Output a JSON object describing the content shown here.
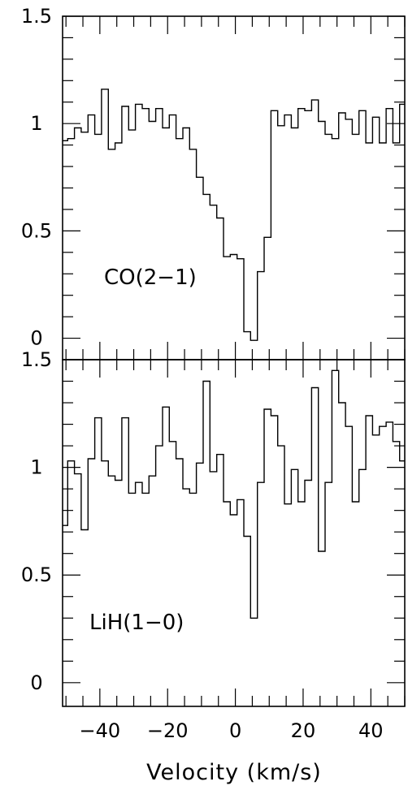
{
  "chart_data": {
    "type": "line",
    "xlabel": "Velocity (km/s)",
    "xlim": [
      -51,
      50
    ],
    "x_ticks": [
      {
        "value": -40,
        "label": "−40"
      },
      {
        "value": -20,
        "label": "−20"
      },
      {
        "value": 0,
        "label": "0"
      },
      {
        "value": 20,
        "label": "20"
      },
      {
        "value": 40,
        "label": "40"
      }
    ],
    "panels": [
      {
        "label": "CO(2−1)",
        "ylim": [
          -0.1,
          1.5
        ],
        "y_ticks": [
          {
            "value": 0,
            "label": "0"
          },
          {
            "value": 0.5,
            "label": "0.5"
          },
          {
            "value": 1,
            "label": "1"
          },
          {
            "value": 1.5,
            "label": "1.5"
          }
        ],
        "series": [
          {
            "style": "step",
            "x": [
              -50.5,
              -48.5,
              -46.5,
              -44.5,
              -42.5,
              -40.5,
              -38.5,
              -36.5,
              -34.5,
              -32.5,
              -30.5,
              -28.5,
              -26.5,
              -24.5,
              -22.5,
              -20.5,
              -18.5,
              -16.5,
              -14.5,
              -12.5,
              -10.5,
              -8.5,
              -6.5,
              -4.5,
              -2.5,
              -0.5,
              1.5,
              3.5,
              5.5,
              7.5,
              9.5,
              11.5,
              13.5,
              15.5,
              17.5,
              19.5,
              21.5,
              23.5,
              25.5,
              27.5,
              29.5,
              31.5,
              33.5,
              35.5,
              37.5,
              39.5,
              41.5,
              43.5,
              45.5,
              47.5,
              49.5
            ],
            "y": [
              0.92,
              0.93,
              0.98,
              0.96,
              1.04,
              0.95,
              1.16,
              0.88,
              0.91,
              1.08,
              0.97,
              1.09,
              1.07,
              1.01,
              1.07,
              0.98,
              1.04,
              0.93,
              0.98,
              0.88,
              0.75,
              0.67,
              0.62,
              0.56,
              0.38,
              0.39,
              0.37,
              0.03,
              -0.01,
              0.31,
              0.47,
              1.06,
              0.99,
              1.04,
              0.98,
              1.07,
              1.06,
              1.11,
              1.01,
              0.95,
              0.93,
              1.05,
              1.02,
              0.95,
              1.06,
              0.91,
              1.03,
              0.91,
              1.07,
              0.91,
              1.09
            ]
          }
        ]
      },
      {
        "label": "LiH(1−0)",
        "ylim": [
          -0.11,
          1.5
        ],
        "y_ticks": [
          {
            "value": 0,
            "label": "0"
          },
          {
            "value": 0.5,
            "label": "0.5"
          },
          {
            "value": 1,
            "label": "1"
          },
          {
            "value": 1.5,
            "label": "1.5"
          }
        ],
        "series": [
          {
            "style": "step",
            "x": [
              -50.5,
              -48.5,
              -46.5,
              -44.5,
              -42.5,
              -40.5,
              -38.5,
              -36.5,
              -34.5,
              -32.5,
              -30.5,
              -28.5,
              -26.5,
              -24.5,
              -22.5,
              -20.5,
              -18.5,
              -16.5,
              -14.5,
              -12.5,
              -10.5,
              -8.5,
              -6.5,
              -4.5,
              -2.5,
              -0.5,
              1.5,
              3.5,
              5.5,
              7.5,
              9.5,
              11.5,
              13.5,
              15.5,
              17.5,
              19.5,
              21.5,
              23.5,
              25.5,
              27.5,
              29.5,
              31.5,
              33.5,
              35.5,
              37.5,
              39.5,
              41.5,
              43.5,
              45.5,
              47.5,
              49.5
            ],
            "y": [
              0.73,
              1.03,
              0.97,
              0.71,
              1.04,
              1.23,
              1.03,
              0.96,
              0.94,
              1.23,
              0.88,
              0.93,
              0.88,
              0.96,
              1.1,
              1.28,
              1.12,
              1.04,
              0.9,
              0.88,
              1.02,
              1.4,
              0.98,
              1.06,
              0.84,
              0.78,
              0.85,
              0.68,
              0.3,
              0.93,
              1.27,
              1.24,
              1.1,
              0.83,
              0.99,
              0.84,
              0.94,
              1.37,
              0.61,
              0.93,
              1.45,
              1.3,
              1.19,
              0.84,
              0.99,
              1.24,
              1.15,
              1.19,
              1.21,
              1.12,
              1.03
            ]
          }
        ]
      }
    ]
  }
}
